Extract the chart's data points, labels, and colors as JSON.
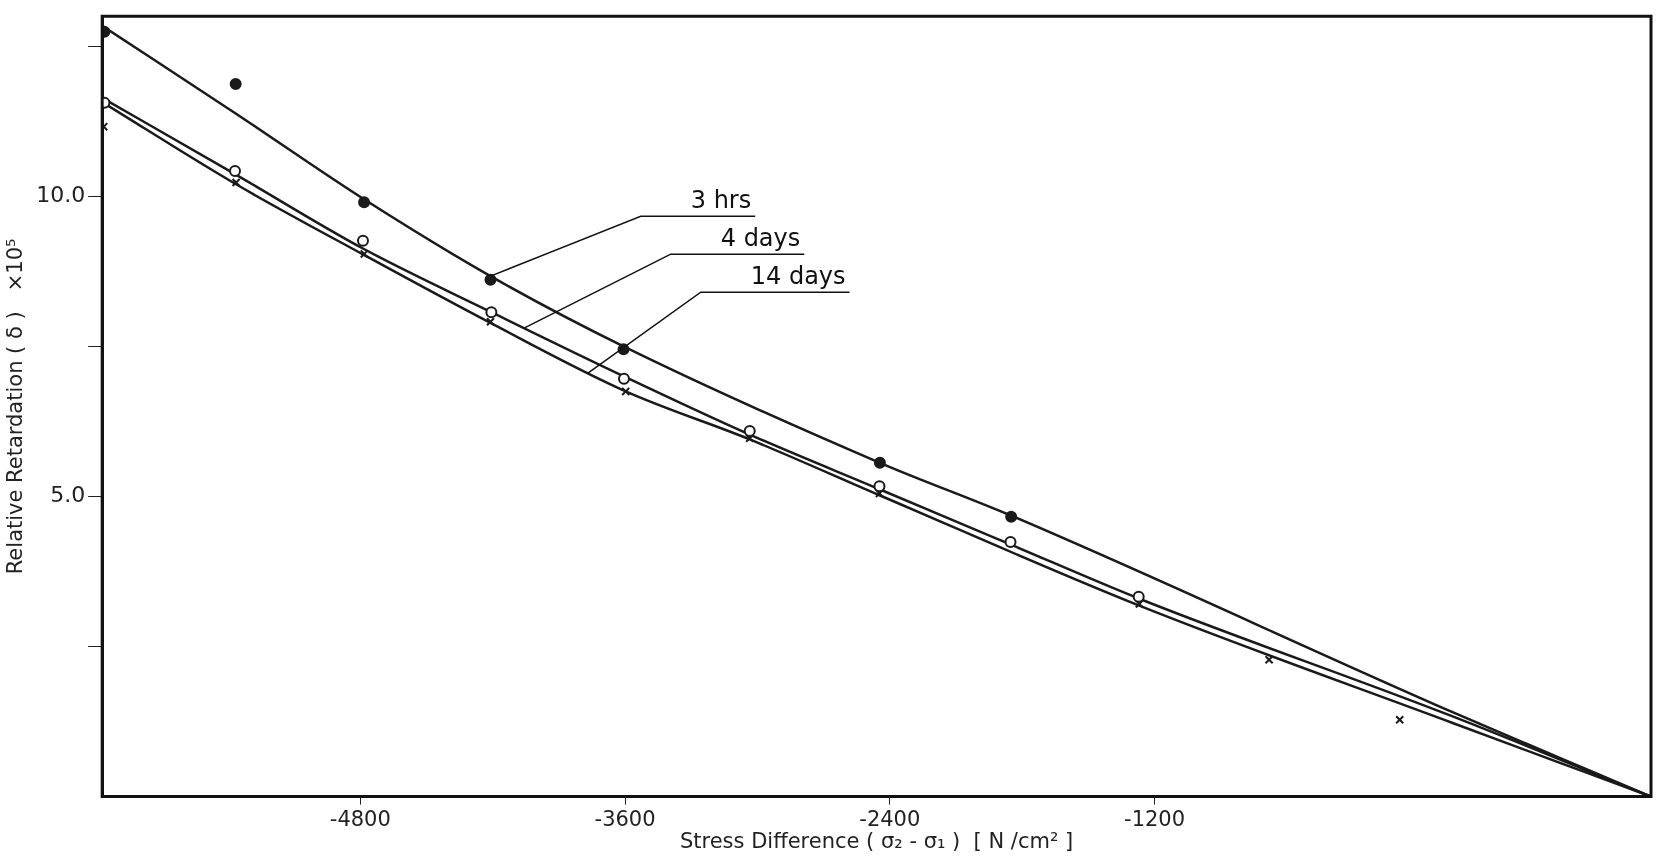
{
  "chart_data": {
    "type": "scatter",
    "xlabel": "Stress Difference ( σ₂ - σ₁ )  [ N /cm² ]",
    "ylabel": "Relative Retardation ( δ )   ×10⁵",
    "xlim": [
      -5970,
      1050
    ],
    "ylim": [
      0,
      13
    ],
    "xticks": [
      -4800,
      -3600,
      -2400,
      -1200
    ],
    "yticks": [
      {
        "value": 2.5,
        "label": null
      },
      {
        "value": 5,
        "label": "5.0"
      },
      {
        "value": 7.5,
        "label": null
      },
      {
        "value": 10,
        "label": "10.0"
      },
      {
        "value": 12.5,
        "label": null
      }
    ],
    "grid": false,
    "legend": false,
    "annotations": [
      {
        "text": "3 hrs",
        "x": -4210,
        "y": 8.67
      },
      {
        "text": "4 days",
        "x": -4060,
        "y": 7.8
      },
      {
        "text": "14 days",
        "x": -3770,
        "y": 7.05
      }
    ],
    "series": [
      {
        "marker": "circle",
        "color": "#1a1a1a",
        "x": [
          -5960,
          -5365,
          -4783,
          -4210,
          -3607,
          -2445,
          -1850
        ],
        "values": [
          12.74,
          11.87,
          9.9,
          8.61,
          7.45,
          5.56,
          4.66
        ]
      },
      {
        "marker": "circle",
        "color": "#1a1a1a",
        "x": [
          -5960,
          -5368,
          -4788,
          -4206,
          -3605,
          -3035,
          -2447,
          -1853,
          -1272
        ],
        "values": [
          11.56,
          10.42,
          9.26,
          8.07,
          6.96,
          6.09,
          5.17,
          4.24,
          3.33
        ]
      },
      {
        "marker": "cross",
        "color": "#1a1a1a",
        "x": [
          -5963,
          -5363,
          -4782,
          -4210,
          -3597,
          -3035,
          -2447,
          -1269,
          -681,
          -89
        ],
        "values": [
          11.16,
          10.23,
          9.04,
          7.91,
          6.75,
          5.97,
          5.05,
          3.21,
          2.28,
          1.28
        ]
      },
      {
        "type": "line",
        "color": "#1a1a1a",
        "x": [
          -5970,
          -5365,
          -4783,
          -4210,
          -3607,
          -2445,
          -1850,
          148,
          1050
        ],
        "values": [
          12.84,
          11.38,
          9.95,
          8.67,
          7.5,
          5.56,
          4.68,
          1.41,
          0
        ]
      },
      {
        "type": "line",
        "color": "#1a1a1a",
        "x": [
          -5970,
          -5368,
          -4788,
          -4206,
          -3605,
          -3035,
          -2447,
          -1853,
          -1272,
          148,
          1050
        ],
        "values": [
          11.64,
          10.37,
          9.13,
          8.07,
          7.0,
          6.03,
          5.12,
          4.2,
          3.3,
          1.34,
          0
        ]
      },
      {
        "type": "line",
        "color": "#1a1a1a",
        "x": [
          -5970,
          -5363,
          -4782,
          -4210,
          -3597,
          -3035,
          -2447,
          -1269,
          148,
          1050
        ],
        "values": [
          11.57,
          10.2,
          9.02,
          7.89,
          6.75,
          5.95,
          5.02,
          3.18,
          1.23,
          0
        ]
      }
    ]
  }
}
